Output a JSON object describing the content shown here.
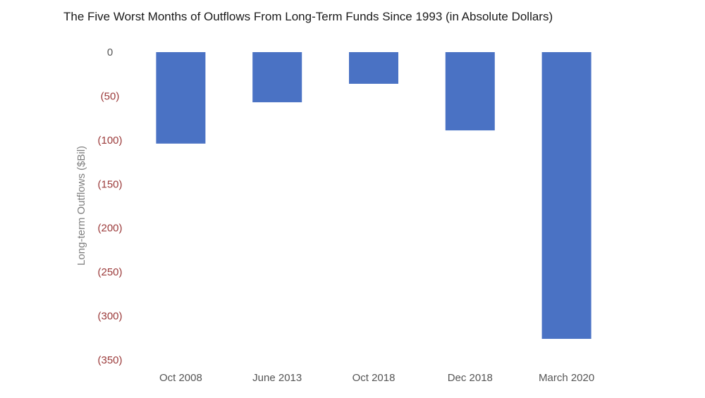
{
  "chart_data": {
    "type": "bar",
    "title": "The Five Worst Months of Outflows From Long-Term Funds Since 1993 (in Absolute Dollars)",
    "xlabel": "",
    "ylabel": "Long-term Outflows ($Bil)",
    "categories": [
      "Oct 2008",
      "June 2013",
      "Oct 2018",
      "Dec 2018",
      "March 2020"
    ],
    "values": [
      -104,
      -57,
      -36,
      -89,
      -326
    ],
    "ylim": [
      -350,
      0
    ],
    "yticks": [
      {
        "value": 0,
        "label": "0"
      },
      {
        "value": -50,
        "label": "(50)"
      },
      {
        "value": -100,
        "label": "(100)"
      },
      {
        "value": -150,
        "label": "(150)"
      },
      {
        "value": -200,
        "label": "(200)"
      },
      {
        "value": -250,
        "label": "(250)"
      },
      {
        "value": -300,
        "label": "(300)"
      },
      {
        "value": -350,
        "label": "(350)"
      }
    ],
    "grid": false,
    "legend": "none",
    "colors": {
      "bar": "#4A72C4",
      "zero_tick_label": "#555555",
      "negative_tick_label": "#9B3A3A",
      "axis_label": "#7f7f7f"
    }
  }
}
